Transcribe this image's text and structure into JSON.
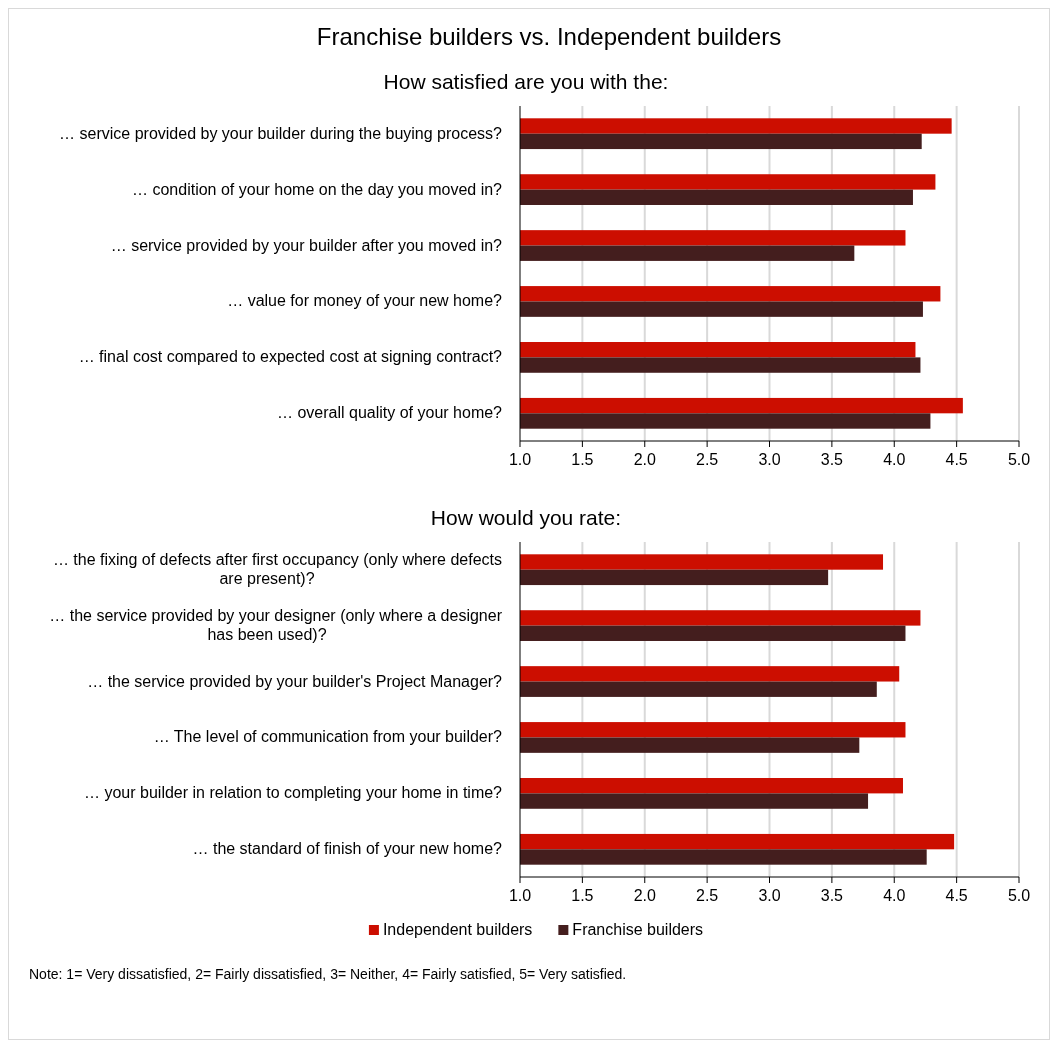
{
  "chart_data": [
    {
      "type": "bar",
      "orientation": "horizontal",
      "title": "Franchise builders vs. Independent builders",
      "subtitle": "How satisfied are you with the:",
      "categories": [
        "… service provided by your builder during the buying process?",
        "… condition of your home on the day you moved in?",
        "… service provided by your builder after you moved in?",
        "… value for money of your new home?",
        "… final cost compared to expected cost at signing contract?",
        "… overall quality of your home?"
      ],
      "series": [
        {
          "color": "#cc0e00",
          "values": [
            4.46,
            4.33,
            4.09,
            4.37,
            4.17,
            4.55
          ]
        },
        {
          "color": "#441e1e",
          "values": [
            4.22,
            4.15,
            3.68,
            4.23,
            4.21,
            4.29
          ]
        }
      ],
      "xlim": [
        1,
        5
      ],
      "xticks": [
        {
          "value": 1,
          "label": "1.0"
        },
        {
          "value": 1.5,
          "label": "1.5"
        },
        {
          "value": 2,
          "label": "2.0"
        },
        {
          "value": 2.5,
          "label": "2.5"
        },
        {
          "value": 3,
          "label": "3.0"
        },
        {
          "value": 3.5,
          "label": "3.5"
        },
        {
          "value": 4,
          "label": "4.0"
        },
        {
          "value": 4.5,
          "label": "4.5"
        },
        {
          "value": 5,
          "label": "5.0"
        }
      ],
      "grid": "x",
      "legend": false
    },
    {
      "type": "bar",
      "orientation": "horizontal",
      "subtitle": "How would you rate:",
      "categories": [
        "… the fixing of defects after first occupancy (only where defects are present)?",
        "… the service provided by your designer (only where a designer has been used)?",
        "… the service provided by your builder's Project Manager?",
        "… The level of communication from your builder?",
        "… your builder in relation to completing your home in time?",
        "… the standard of finish of your new home?"
      ],
      "series": [
        {
          "name": "Independent builders",
          "color": "#cc0e00",
          "values": [
            3.91,
            4.21,
            4.04,
            4.09,
            4.07,
            4.48
          ]
        },
        {
          "name": "Franchise builders",
          "color": "#441e1e",
          "values": [
            3.47,
            4.09,
            3.86,
            3.72,
            3.79,
            4.26
          ]
        }
      ],
      "xlim": [
        1,
        5
      ],
      "xticks": [
        {
          "value": 1,
          "label": "1.0"
        },
        {
          "value": 1.5,
          "label": "1.5"
        },
        {
          "value": 2,
          "label": "2.0"
        },
        {
          "value": 2.5,
          "label": "2.5"
        },
        {
          "value": 3,
          "label": "3.0"
        },
        {
          "value": 3.5,
          "label": "3.5"
        },
        {
          "value": 4,
          "label": "4.0"
        },
        {
          "value": 4.5,
          "label": "4.5"
        },
        {
          "value": 5,
          "label": "5.0"
        }
      ],
      "grid": "x",
      "legend": "bottom",
      "annotations": [
        "Note:  1= Very dissatisfied, 2= Fairly dissatisfied, 3= Neither, 4= Fairly satisfied, 5= Very satisfied."
      ]
    }
  ]
}
